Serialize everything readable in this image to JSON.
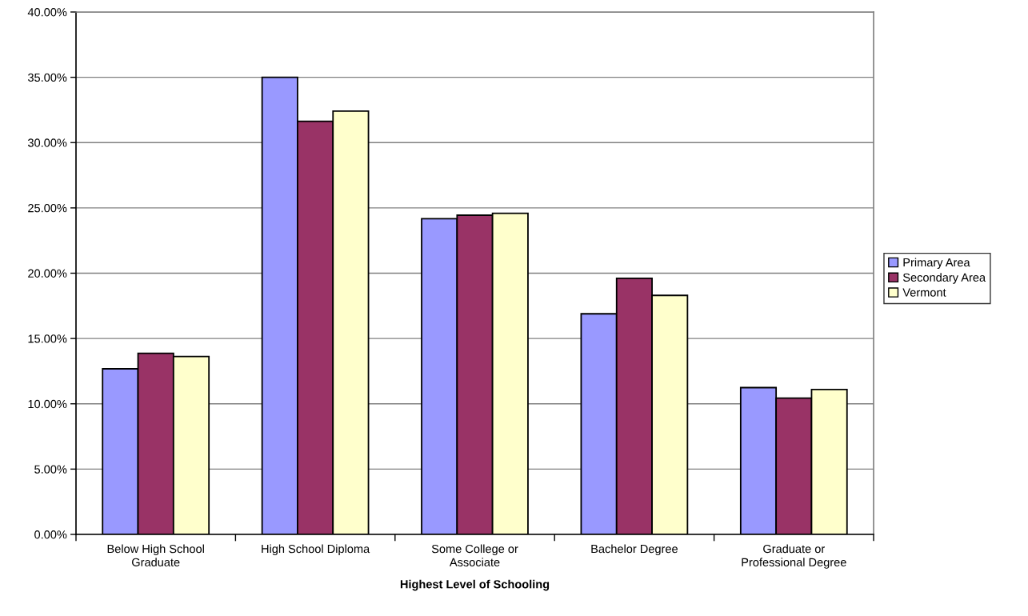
{
  "chart_data": {
    "type": "bar",
    "xlabel": "Highest Level of Schooling",
    "categories": [
      "Below High School\nGraduate",
      "High School Diploma",
      "Some College or\nAssociate",
      "Bachelor Degree",
      "Graduate or\nProfessional Degree"
    ],
    "series": [
      {
        "name": "Primary Area",
        "color": "#9999ff",
        "values": [
          12.68,
          35.0,
          24.17,
          16.89,
          11.24
        ]
      },
      {
        "name": "Secondary Area",
        "color": "#993366",
        "values": [
          13.87,
          31.63,
          24.44,
          19.61,
          10.44
        ]
      },
      {
        "name": "Vermont",
        "color": "#ffffcc",
        "values": [
          13.62,
          32.41,
          24.59,
          18.3,
          11.09
        ]
      }
    ],
    "ylim": [
      0,
      40
    ],
    "yticks": [
      {
        "value": 0,
        "label": "0.00%"
      },
      {
        "value": 5,
        "label": "5.00%"
      },
      {
        "value": 10,
        "label": "10.00%"
      },
      {
        "value": 15,
        "label": "15.00%"
      },
      {
        "value": 20,
        "label": "20.00%"
      },
      {
        "value": 25,
        "label": "25.00%"
      },
      {
        "value": 30,
        "label": "30.00%"
      },
      {
        "value": 35,
        "label": "35.00%"
      },
      {
        "value": 40,
        "label": "40.00%"
      }
    ],
    "grid": "y",
    "legend": "right"
  }
}
